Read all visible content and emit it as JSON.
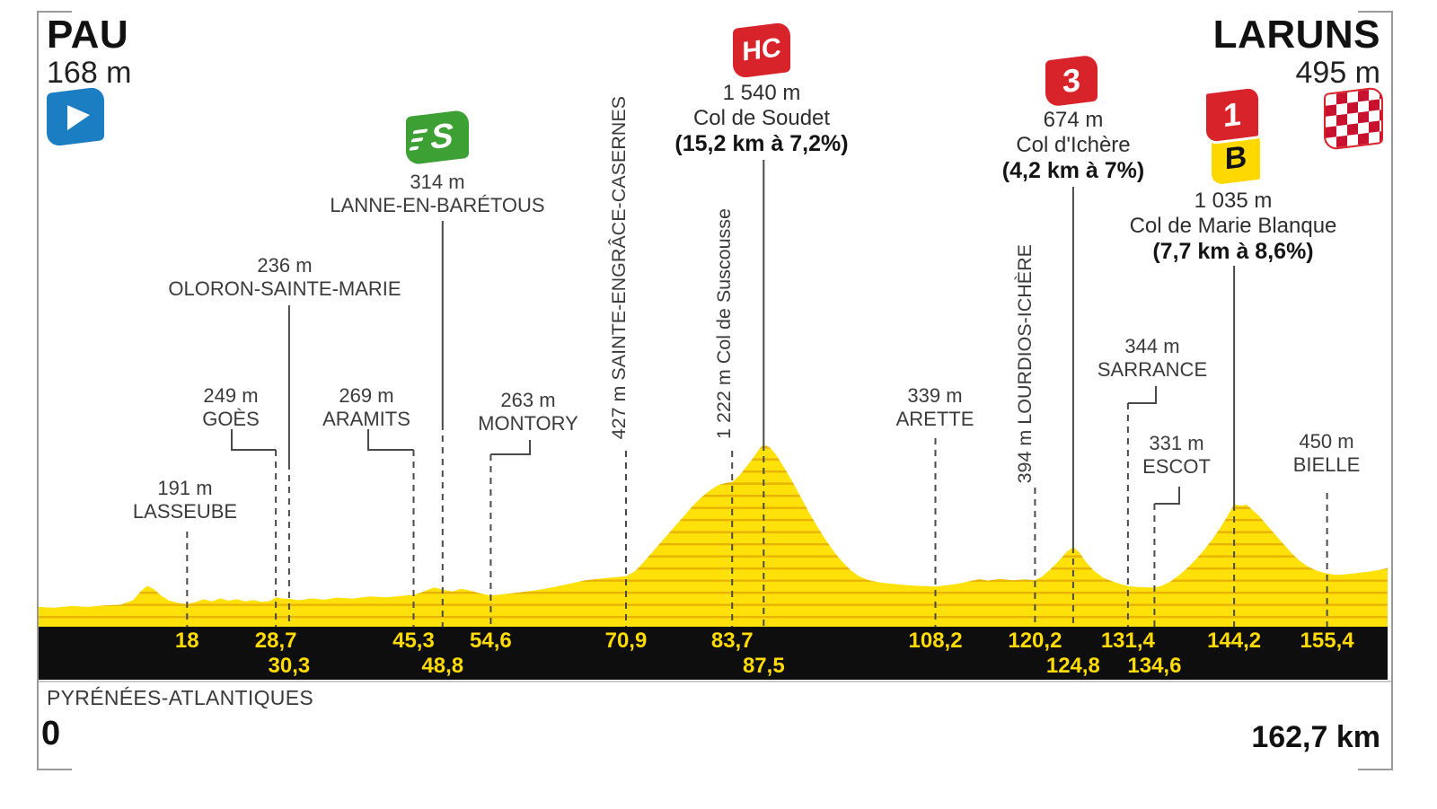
{
  "header": {
    "start": {
      "name": "PAU",
      "elevation": "168 m"
    },
    "finish": {
      "name": "LARUNS",
      "elevation": "495 m"
    }
  },
  "footer": {
    "region": "PYRÉNÉES-ATLANTIQUES",
    "start_km": "0",
    "total_distance": "162,7 km"
  },
  "colors": {
    "category_red": "#D8232A",
    "sprint_green": "#3CA035",
    "bonus_yellow": "#FFD800",
    "start_blue": "#1B7EC3",
    "profile_yellow": "#FFE10A",
    "profile_hatch": "#E0A400",
    "bar_black": "#0E0E0E",
    "km_text_yellow": "#FFDB00"
  },
  "chart_data": {
    "type": "area",
    "title": "Stage profile Pau to Laruns",
    "x_unit": "km",
    "y_unit": "m",
    "x_range": [
      0,
      162.7
    ],
    "y_range": [
      0,
      1540
    ],
    "elevation_profile": [
      [
        0,
        168
      ],
      [
        2,
        160
      ],
      [
        4,
        175
      ],
      [
        6,
        168
      ],
      [
        8,
        180
      ],
      [
        10,
        186
      ],
      [
        11.5,
        225
      ],
      [
        12.5,
        305
      ],
      [
        13.2,
        345
      ],
      [
        14,
        318
      ],
      [
        14.8,
        268
      ],
      [
        15.8,
        222
      ],
      [
        17,
        200
      ],
      [
        18,
        191
      ],
      [
        19,
        208
      ],
      [
        20,
        232
      ],
      [
        21,
        214
      ],
      [
        22,
        240
      ],
      [
        23,
        220
      ],
      [
        24,
        233
      ],
      [
        25,
        214
      ],
      [
        26,
        226
      ],
      [
        27,
        210
      ],
      [
        28,
        218
      ],
      [
        28.7,
        249
      ],
      [
        29.5,
        238
      ],
      [
        30.3,
        236
      ],
      [
        31.5,
        224
      ],
      [
        33,
        240
      ],
      [
        34.5,
        228
      ],
      [
        36,
        246
      ],
      [
        38,
        238
      ],
      [
        40,
        256
      ],
      [
        42,
        248
      ],
      [
        44,
        262
      ],
      [
        45.3,
        269
      ],
      [
        46.2,
        288
      ],
      [
        47,
        312
      ],
      [
        47.8,
        332
      ],
      [
        48.8,
        314
      ],
      [
        50,
        298
      ],
      [
        51,
        322
      ],
      [
        52,
        308
      ],
      [
        53,
        288
      ],
      [
        54.6,
        263
      ],
      [
        56,
        274
      ],
      [
        58,
        290
      ],
      [
        60,
        308
      ],
      [
        62,
        332
      ],
      [
        64,
        362
      ],
      [
        66,
        392
      ],
      [
        68.5,
        412
      ],
      [
        70.9,
        427
      ],
      [
        72,
        470
      ],
      [
        73,
        545
      ],
      [
        74,
        625
      ],
      [
        75,
        705
      ],
      [
        76,
        785
      ],
      [
        77,
        865
      ],
      [
        78,
        945
      ],
      [
        79,
        1025
      ],
      [
        80,
        1095
      ],
      [
        81,
        1152
      ],
      [
        82,
        1196
      ],
      [
        83,
        1216
      ],
      [
        83.7,
        1222
      ],
      [
        84.5,
        1272
      ],
      [
        85.3,
        1342
      ],
      [
        86.2,
        1425
      ],
      [
        87,
        1505
      ],
      [
        87.5,
        1540
      ],
      [
        88.3,
        1512
      ],
      [
        89,
        1452
      ],
      [
        90,
        1342
      ],
      [
        91,
        1222
      ],
      [
        92,
        1092
      ],
      [
        93,
        962
      ],
      [
        94,
        842
      ],
      [
        95,
        732
      ],
      [
        96,
        632
      ],
      [
        97,
        547
      ],
      [
        98,
        477
      ],
      [
        99,
        427
      ],
      [
        100,
        397
      ],
      [
        101.5,
        374
      ],
      [
        103,
        362
      ],
      [
        105,
        350
      ],
      [
        108.2,
        339
      ],
      [
        109.5,
        350
      ],
      [
        111,
        364
      ],
      [
        112.5,
        388
      ],
      [
        113.5,
        402
      ],
      [
        114.5,
        390
      ],
      [
        116,
        404
      ],
      [
        117.5,
        392
      ],
      [
        119,
        400
      ],
      [
        120.2,
        394
      ],
      [
        121,
        422
      ],
      [
        122,
        482
      ],
      [
        123,
        552
      ],
      [
        124,
        632
      ],
      [
        124.8,
        674
      ],
      [
        125.5,
        632
      ],
      [
        126.3,
        552
      ],
      [
        127.3,
        472
      ],
      [
        128.5,
        412
      ],
      [
        130,
        372
      ],
      [
        131.4,
        344
      ],
      [
        132.5,
        336
      ],
      [
        134.6,
        331
      ],
      [
        135.5,
        346
      ],
      [
        136.5,
        382
      ],
      [
        137.5,
        432
      ],
      [
        138.5,
        492
      ],
      [
        139.5,
        562
      ],
      [
        140.5,
        642
      ],
      [
        141.5,
        732
      ],
      [
        142.5,
        832
      ],
      [
        143.4,
        935
      ],
      [
        144.2,
        1035
      ],
      [
        145,
        1022
      ],
      [
        145.7,
        1032
      ],
      [
        146.4,
        988
      ],
      [
        147.2,
        938
      ],
      [
        148,
        872
      ],
      [
        149,
        792
      ],
      [
        150,
        712
      ],
      [
        151,
        632
      ],
      [
        152,
        562
      ],
      [
        153,
        512
      ],
      [
        154.2,
        472
      ],
      [
        155.4,
        450
      ],
      [
        156.5,
        438
      ],
      [
        157.5,
        442
      ],
      [
        158.5,
        450
      ],
      [
        159.5,
        458
      ],
      [
        160.5,
        466
      ],
      [
        161.5,
        478
      ],
      [
        162.7,
        495
      ]
    ],
    "points_of_interest": [
      {
        "name": "LASSEUBE",
        "elevation_label": "191 m",
        "km": 18,
        "type": "town"
      },
      {
        "name": "GOÈS",
        "elevation_label": "249 m",
        "km": 28.7,
        "type": "town"
      },
      {
        "name": "OLORON-SAINTE-MARIE",
        "elevation_label": "236 m",
        "km": 30.3,
        "type": "town"
      },
      {
        "name": "ARAMITS",
        "elevation_label": "269 m",
        "km": 45.3,
        "type": "town"
      },
      {
        "name": "LANNE-EN-BARÉTOUS",
        "elevation_label": "314 m",
        "km": 48.8,
        "type": "sprint",
        "marker": "S"
      },
      {
        "name": "MONTORY",
        "elevation_label": "263 m",
        "km": 54.6,
        "type": "town"
      },
      {
        "label": "427 m SAINTE-ENGRÂCE-CASERNES",
        "km": 70.9,
        "type": "town-vertical"
      },
      {
        "label": "1 222 m Col de Suscousse",
        "km": 83.7,
        "type": "col-vertical"
      },
      {
        "name": "Col de Soudet",
        "elevation_label": "1 540 m",
        "gradient": "(15,2 km à 7,2%)",
        "km": 87.5,
        "type": "climb",
        "category": "HC"
      },
      {
        "name": "ARETTE",
        "elevation_label": "339 m",
        "km": 108.2,
        "type": "town"
      },
      {
        "label": "394 m LOURDIOS-ICHÈRE",
        "km": 120.2,
        "type": "town-vertical"
      },
      {
        "name": "Col d'Ichère",
        "elevation_label": "674 m",
        "gradient": "(4,2 km à 7%)",
        "km": 124.8,
        "type": "climb",
        "category": "3"
      },
      {
        "name": "SARRANCE",
        "elevation_label": "344 m",
        "km": 131.4,
        "type": "town"
      },
      {
        "name": "ESCOT",
        "elevation_label": "331 m",
        "km": 134.6,
        "type": "town"
      },
      {
        "name": "Col de Marie Blanque",
        "elevation_label": "1 035 m",
        "gradient": "(7,7 km à 8,6%)",
        "km": 144.2,
        "type": "climb",
        "category": "1",
        "bonus": "B"
      },
      {
        "name": "BIELLE",
        "elevation_label": "450 m",
        "km": 155.4,
        "type": "town"
      }
    ],
    "km_marks": [
      {
        "km": 18,
        "label": "18",
        "row": 1
      },
      {
        "km": 28.7,
        "label": "28,7",
        "row": 1
      },
      {
        "km": 30.3,
        "label": "30,3",
        "row": 2
      },
      {
        "km": 45.3,
        "label": "45,3",
        "row": 1
      },
      {
        "km": 48.8,
        "label": "48,8",
        "row": 2
      },
      {
        "km": 54.6,
        "label": "54,6",
        "row": 1
      },
      {
        "km": 70.9,
        "label": "70,9",
        "row": 1
      },
      {
        "km": 83.7,
        "label": "83,7",
        "row": 1
      },
      {
        "km": 87.5,
        "label": "87,5",
        "row": 2
      },
      {
        "km": 108.2,
        "label": "108,2",
        "row": 1
      },
      {
        "km": 120.2,
        "label": "120,2",
        "row": 1
      },
      {
        "km": 124.8,
        "label": "124,8",
        "row": 2
      },
      {
        "km": 131.4,
        "label": "131,4",
        "row": 1
      },
      {
        "km": 134.6,
        "label": "134,6",
        "row": 2
      },
      {
        "km": 144.2,
        "label": "144,2",
        "row": 1
      },
      {
        "km": 155.4,
        "label": "155,4",
        "row": 1
      }
    ]
  }
}
